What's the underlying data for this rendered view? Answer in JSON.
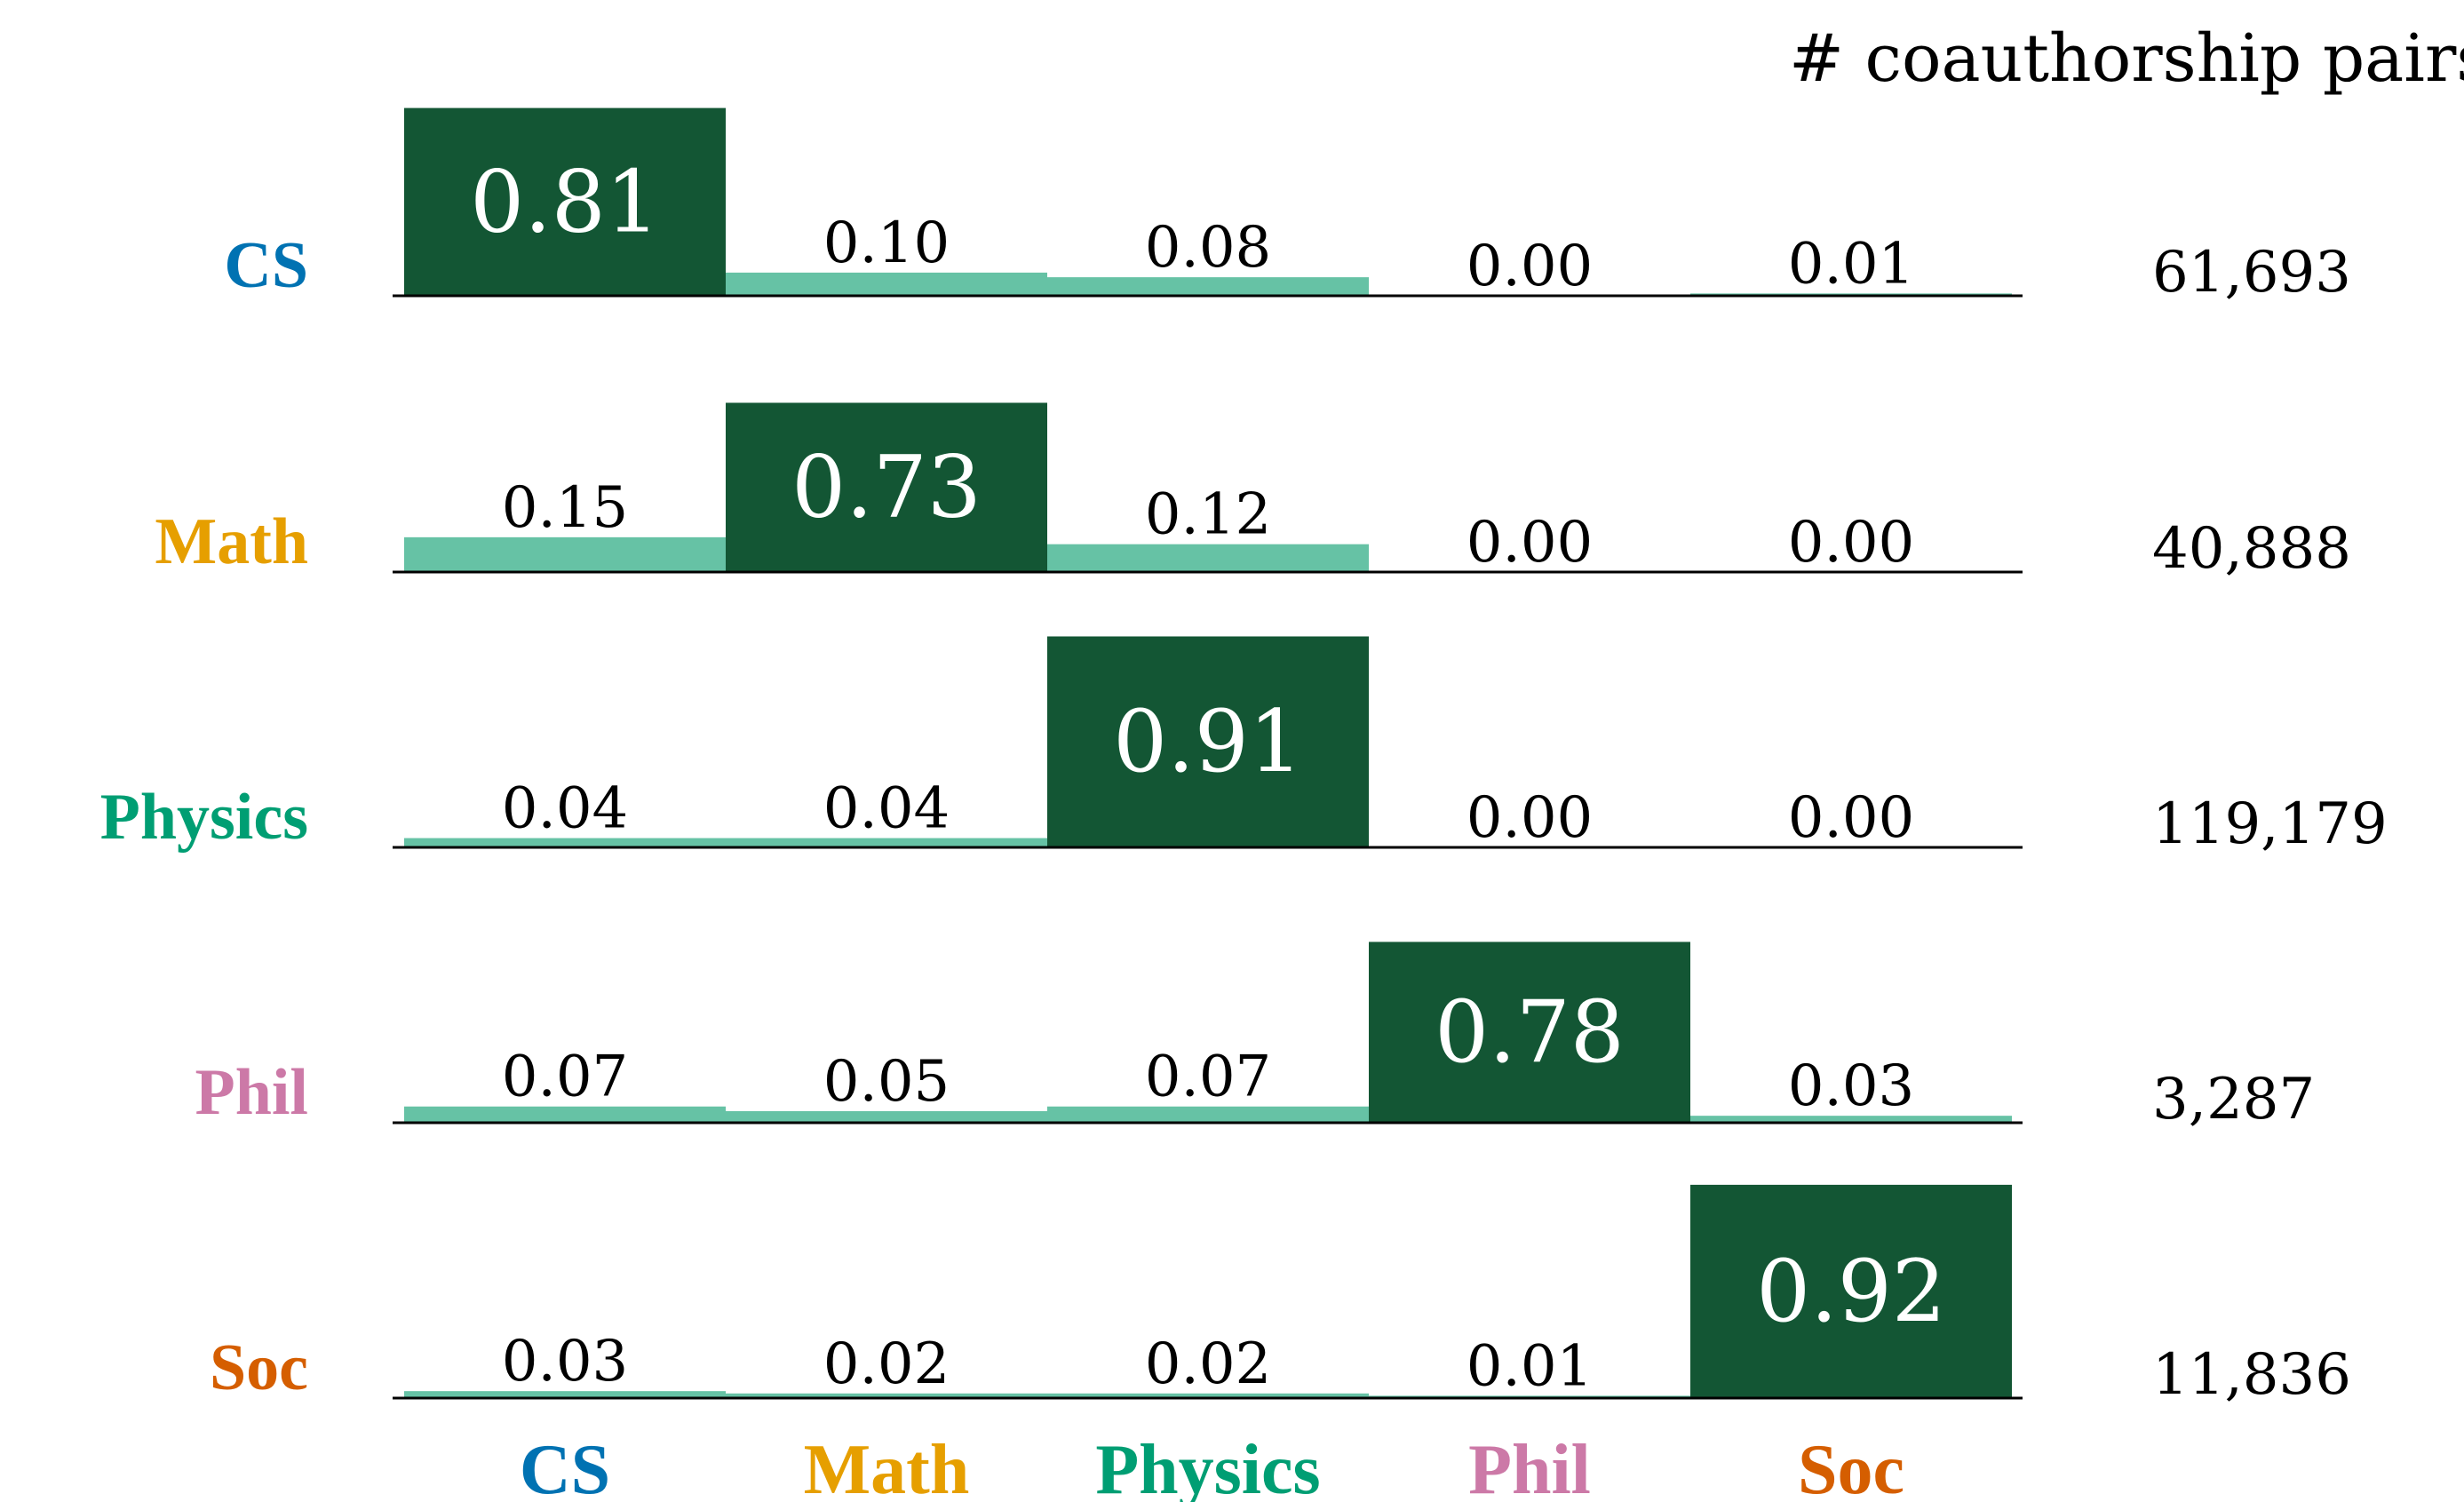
{
  "chart_data": {
    "type": "bar",
    "count_header": "# coauthorship pairs",
    "categories": [
      "CS",
      "Math",
      "Physics",
      "Phil",
      "Soc"
    ],
    "category_colors": {
      "CS": "#0072b2",
      "Math": "#e69f00",
      "Physics": "#009e73",
      "Phil": "#cc79a7",
      "Soc": "#d55e00"
    },
    "bar_color_diagonal": "#135634",
    "bar_color_offdiagonal": "#66c2a5",
    "label_color_diagonal": "#ffffff",
    "label_color_offdiagonal": "#000000",
    "ylim": [
      0,
      1
    ],
    "rows": [
      {
        "name": "CS",
        "values": [
          0.81,
          0.1,
          0.08,
          0.0,
          0.01
        ],
        "labels": [
          "0.81",
          "0.10",
          "0.08",
          "0.00",
          "0.01"
        ],
        "count": "61,693"
      },
      {
        "name": "Math",
        "values": [
          0.15,
          0.73,
          0.12,
          0.0,
          0.0
        ],
        "labels": [
          "0.15",
          "0.73",
          "0.12",
          "0.00",
          "0.00"
        ],
        "count": "40,888"
      },
      {
        "name": "Physics",
        "values": [
          0.04,
          0.04,
          0.91,
          0.0,
          0.0
        ],
        "labels": [
          "0.04",
          "0.04",
          "0.91",
          "0.00",
          "0.00"
        ],
        "count": "119,179"
      },
      {
        "name": "Phil",
        "values": [
          0.07,
          0.05,
          0.07,
          0.78,
          0.03
        ],
        "labels": [
          "0.07",
          "0.05",
          "0.07",
          "0.78",
          "0.03"
        ],
        "count": "3,287"
      },
      {
        "name": "Soc",
        "values": [
          0.03,
          0.02,
          0.02,
          0.01,
          0.92
        ],
        "labels": [
          "0.03",
          "0.02",
          "0.02",
          "0.01",
          "0.92"
        ],
        "count": "11,836"
      }
    ]
  }
}
